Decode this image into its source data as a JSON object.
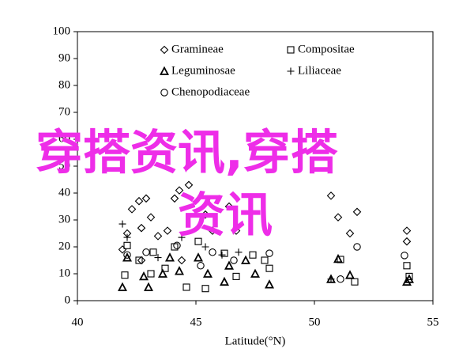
{
  "chart_data": {
    "type": "scatter",
    "x_label": "Latitude(°N)",
    "xlim": [
      40,
      55
    ],
    "xticks": [
      40,
      45,
      50,
      55
    ],
    "ylim": [
      0,
      100
    ],
    "yticks": [
      0,
      10,
      20,
      30,
      40,
      50,
      60,
      70,
      80,
      90,
      100
    ],
    "grid": false,
    "legend": "top",
    "annotations": [
      "穿搭资讯,穿搭",
      "资讯"
    ],
    "series": [
      {
        "name": "Gramineae",
        "marker": "diamond",
        "color": "#000000",
        "x": [
          42.3,
          42.6,
          42.9,
          42.7,
          43.1,
          41.9,
          42.1,
          43.4,
          43.8,
          44.1,
          44.3,
          44.7,
          45.4,
          45.7,
          46.4,
          46.7,
          50.7,
          51.0,
          51.8,
          51.5,
          53.9,
          53.9,
          44.4,
          42.7
        ],
        "values": [
          34,
          37,
          38,
          27,
          31,
          19,
          25,
          24,
          26,
          38,
          41,
          43,
          32,
          26,
          35,
          26,
          39,
          31,
          33,
          25,
          22,
          26,
          15,
          15
        ]
      },
      {
        "name": "Compositae",
        "marker": "square",
        "color": "#000000",
        "x": [
          42.0,
          42.1,
          42.6,
          43.1,
          43.7,
          44.1,
          44.6,
          45.4,
          46.2,
          46.7,
          47.4,
          47.9,
          48.1,
          51.1,
          51.7,
          53.9,
          54.0,
          43.2,
          45.1
        ],
        "values": [
          9.5,
          20.5,
          15,
          10,
          12,
          20,
          5,
          4.5,
          17.6,
          9,
          17,
          15,
          12,
          15.3,
          7,
          13,
          9,
          18,
          22
        ]
      },
      {
        "name": "Leguminosae",
        "marker": "triangle",
        "color": "#000000",
        "x": [
          41.9,
          42.1,
          42.8,
          43.6,
          43.9,
          44.3,
          45.1,
          45.5,
          46.2,
          46.4,
          47.1,
          47.5,
          48.1,
          50.7,
          51.0,
          51.5,
          53.9,
          54.0,
          43.0
        ],
        "values": [
          5,
          16,
          9,
          10,
          16,
          11,
          16,
          10,
          7,
          13,
          15,
          10,
          6,
          8,
          15.5,
          9.5,
          7,
          8,
          5
        ]
      },
      {
        "name": "Liliaceae",
        "marker": "plus",
        "color": "#000000",
        "x": [
          41.9,
          42.1,
          43.4,
          44.4,
          45.4,
          46.1,
          46.8,
          50.7
        ],
        "values": [
          28.5,
          23.5,
          16,
          23.5,
          20,
          17,
          18,
          8
        ]
      },
      {
        "name": "Chenopodiaceae",
        "marker": "circle",
        "color": "#000000",
        "x": [
          42.1,
          42.9,
          44.2,
          45.7,
          46.6,
          48.1,
          51.1,
          51.8,
          53.8,
          45.2
        ],
        "values": [
          17,
          18,
          20.5,
          18,
          15,
          17.6,
          8,
          20,
          16.8,
          13
        ]
      }
    ]
  }
}
